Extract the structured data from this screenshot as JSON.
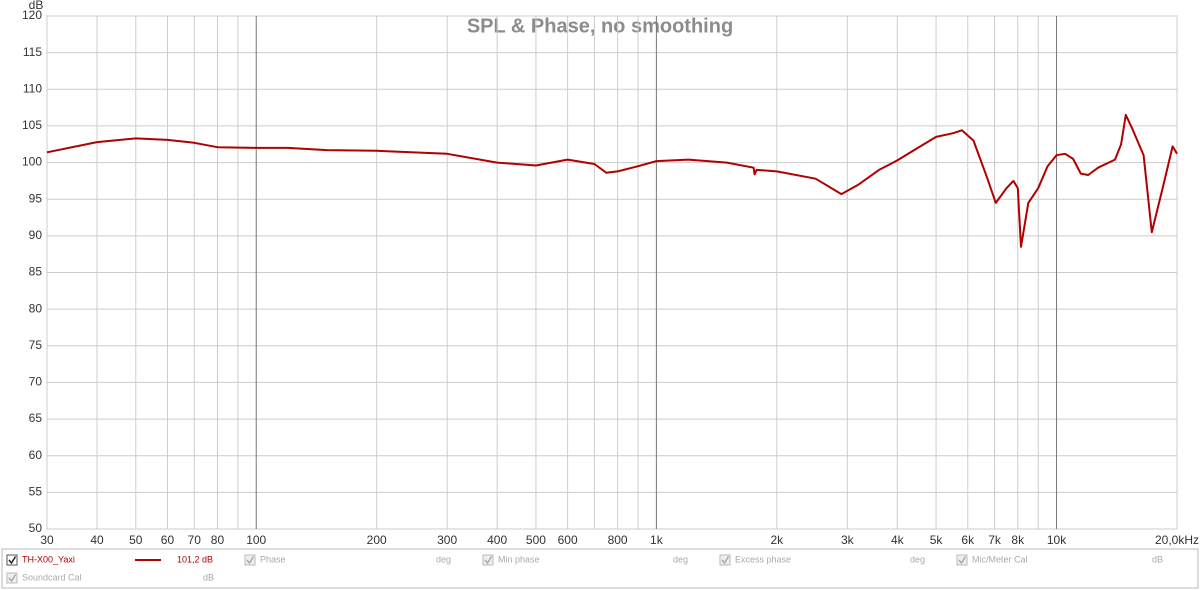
{
  "chart_data": {
    "type": "line",
    "title": "SPL & Phase, no smoothing",
    "y_label": "dB",
    "x_scale": "log",
    "grid": true,
    "xlim": [
      30,
      20000
    ],
    "ylim": [
      50,
      120
    ],
    "yticks": [
      50,
      55,
      60,
      65,
      70,
      75,
      80,
      85,
      90,
      95,
      100,
      105,
      110,
      115,
      120
    ],
    "xticks": [
      30,
      40,
      50,
      60,
      70,
      80,
      100,
      200,
      300,
      400,
      500,
      600,
      800,
      {
        "value": 1000,
        "label": "1k"
      },
      {
        "value": 2000,
        "label": "2k"
      },
      {
        "value": 3000,
        "label": "3k"
      },
      {
        "value": 4000,
        "label": "4k"
      },
      {
        "value": 5000,
        "label": "5k"
      },
      {
        "value": 6000,
        "label": "6k"
      },
      {
        "value": 7000,
        "label": "7k"
      },
      {
        "value": 8000,
        "label": "8k"
      },
      {
        "value": 10000,
        "label": "10k"
      },
      {
        "value": 20000,
        "label": "20,0kHz"
      }
    ],
    "x_minor_grid": [
      90,
      700,
      900,
      9000
    ],
    "x": [
      30,
      40,
      50,
      60,
      70,
      80,
      100,
      120,
      150,
      200,
      300,
      400,
      500,
      600,
      700,
      750,
      800,
      900,
      1000,
      1200,
      1500,
      1750,
      1760,
      1780,
      2000,
      2500,
      2900,
      3200,
      3600,
      4000,
      4500,
      5000,
      5500,
      5800,
      6200,
      6700,
      7050,
      7500,
      7800,
      8000,
      8150,
      8500,
      9000,
      9500,
      10000,
      10500,
      11000,
      11500,
      12000,
      12700,
      13500,
      14000,
      14500,
      14900,
      15500,
      16500,
      17300,
      18500,
      19500,
      20000
    ],
    "series": [
      {
        "name": "TH-X00_Yaxi",
        "color": "#b00000",
        "cursor_label": "101,2 dB",
        "values": [
          101.4,
          102.8,
          103.3,
          103.1,
          102.7,
          102.1,
          102.0,
          102.0,
          101.7,
          101.6,
          101.2,
          100.0,
          99.6,
          100.4,
          99.8,
          98.6,
          98.8,
          99.5,
          100.2,
          100.4,
          100.0,
          99.3,
          98.4,
          99.0,
          98.8,
          97.8,
          95.7,
          97.0,
          99.0,
          100.3,
          102.0,
          103.5,
          104.0,
          104.4,
          103.0,
          98.0,
          94.5,
          96.5,
          97.5,
          96.5,
          88.5,
          94.5,
          96.5,
          99.5,
          101.0,
          101.2,
          100.5,
          98.5,
          98.3,
          99.3,
          100.0,
          100.4,
          102.5,
          106.5,
          104.5,
          101.0,
          90.5,
          97.0,
          102.2,
          101.2
        ]
      }
    ],
    "traces": [
      {
        "name": "Phase",
        "unit": "deg"
      },
      {
        "name": "Min phase",
        "unit": "deg"
      },
      {
        "name": "Excess phase",
        "unit": "deg"
      },
      {
        "name": "Mic/Meter Cal",
        "unit": "dB"
      },
      {
        "name": "Soundcard Cal",
        "unit": "dB"
      }
    ]
  }
}
